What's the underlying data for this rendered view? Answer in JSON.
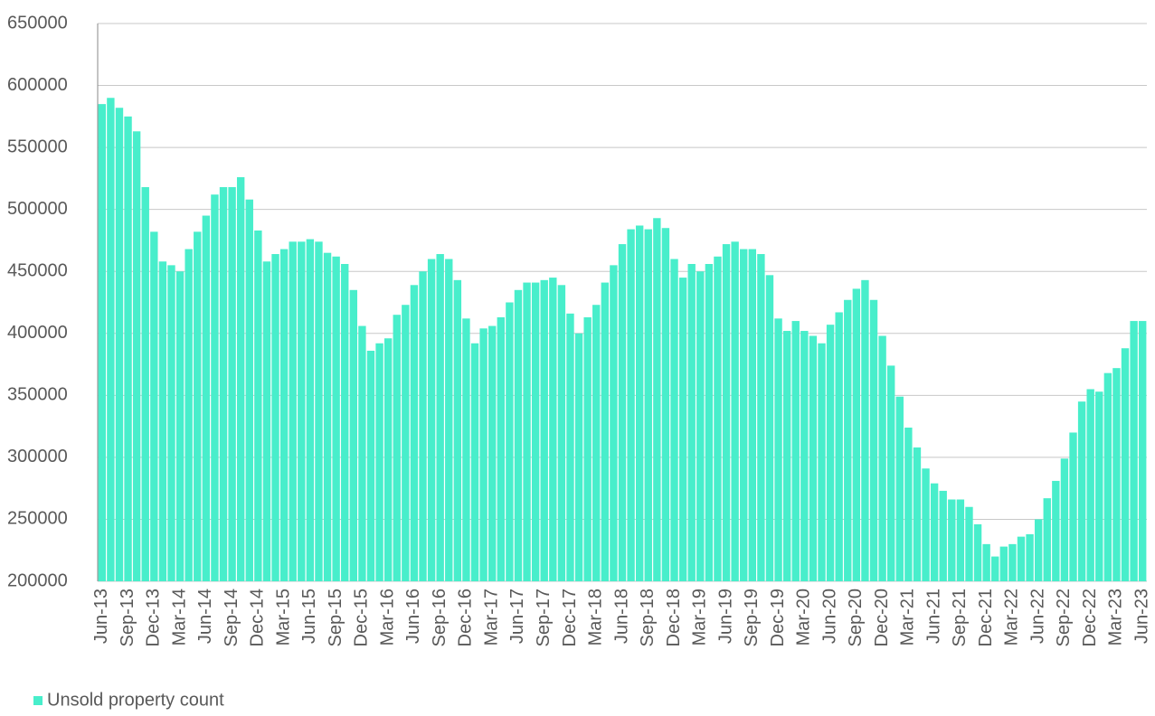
{
  "chart_data": {
    "type": "bar",
    "categories": [
      "Jun-13",
      null,
      null,
      "Sep-13",
      null,
      null,
      "Dec-13",
      null,
      null,
      "Mar-14",
      null,
      null,
      "Jun-14",
      null,
      null,
      "Sep-14",
      null,
      null,
      "Dec-14",
      null,
      null,
      "Mar-15",
      null,
      null,
      "Jun-15",
      null,
      null,
      "Sep-15",
      null,
      null,
      "Dec-15",
      null,
      null,
      "Mar-16",
      null,
      null,
      "Jun-16",
      null,
      null,
      "Sep-16",
      null,
      null,
      "Dec-16",
      null,
      null,
      "Mar-17",
      null,
      null,
      "Jun-17",
      null,
      null,
      "Sep-17",
      null,
      null,
      "Dec-17",
      null,
      null,
      "Mar-18",
      null,
      null,
      "Jun-18",
      null,
      null,
      "Sep-18",
      null,
      null,
      "Dec-18",
      null,
      null,
      "Mar-19",
      null,
      null,
      "Jun-19",
      null,
      null,
      "Sep-19",
      null,
      null,
      "Dec-19",
      null,
      null,
      "Mar-20",
      null,
      null,
      "Jun-20",
      null,
      null,
      "Sep-20",
      null,
      null,
      "Dec-20",
      null,
      null,
      "Mar-21",
      null,
      null,
      "Jun-21",
      null,
      null,
      "Sep-21",
      null,
      null,
      "Dec-21",
      null,
      null,
      "Mar-22",
      null,
      null,
      "Jun-22",
      null,
      null,
      "Sep-22",
      null,
      null,
      "Dec-22",
      null,
      null,
      "Mar-23",
      null,
      null,
      "Jun-23"
    ],
    "series": [
      {
        "name": "Unsold property count",
        "color": "#48eecb",
        "values": [
          585000,
          590000,
          582000,
          575000,
          563000,
          518000,
          482000,
          458000,
          455000,
          450000,
          468000,
          482000,
          495000,
          512000,
          518000,
          518000,
          526000,
          508000,
          483000,
          458000,
          464000,
          468000,
          474000,
          474000,
          476000,
          474000,
          465000,
          462000,
          456000,
          435000,
          406000,
          386000,
          392000,
          396000,
          415000,
          423000,
          439000,
          450000,
          460000,
          464000,
          460000,
          443000,
          412000,
          392000,
          404000,
          406000,
          413000,
          425000,
          435000,
          441000,
          441000,
          443000,
          445000,
          439000,
          416000,
          400000,
          413000,
          423000,
          441000,
          455000,
          472000,
          484000,
          487000,
          484000,
          493000,
          485000,
          460000,
          445000,
          456000,
          450000,
          456000,
          462000,
          472000,
          474000,
          468000,
          468000,
          464000,
          447000,
          412000,
          402000,
          410000,
          402000,
          398000,
          392000,
          407000,
          417000,
          427000,
          436000,
          443000,
          427000,
          398000,
          374000,
          349000,
          324000,
          308000,
          291000,
          279000,
          273000,
          266000,
          266000,
          260000,
          246000,
          230000,
          220000,
          228000,
          230000,
          236000,
          238000,
          250000,
          267000,
          281000,
          299000,
          320000,
          345000,
          355000,
          353000,
          368000,
          372000,
          388000,
          410000,
          410000
        ]
      }
    ],
    "ylim": [
      200000,
      650000
    ],
    "yticks": [
      200000,
      250000,
      300000,
      350000,
      400000,
      450000,
      500000,
      550000,
      600000,
      650000
    ],
    "grid": true,
    "legend": "bottom-left"
  }
}
